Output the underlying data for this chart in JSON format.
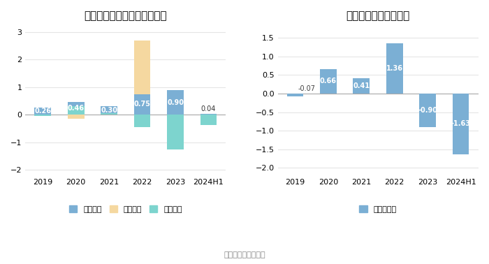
{
  "left_title": "康普化学现金流净额（亿元）",
  "right_title": "自由现金流量（亿元）",
  "categories": [
    "2019",
    "2020",
    "2021",
    "2022",
    "2023",
    "2024H1"
  ],
  "operating": [
    0.26,
    0.46,
    0.3,
    0.75,
    0.9,
    0.04
  ],
  "financing": [
    0.0,
    -0.15,
    0.0,
    1.95,
    0.0,
    -0.2
  ],
  "investing": [
    -0.05,
    0.3,
    0.05,
    -0.45,
    -1.25,
    -0.38
  ],
  "free_cash": [
    -0.07,
    0.66,
    0.41,
    1.36,
    -0.9,
    -1.63
  ],
  "color_operating": "#7BAFD4",
  "color_financing": "#F5D8A0",
  "color_investing": "#7DD4CE",
  "color_free": "#7BAFD4",
  "left_ylim": [
    -2.2,
    3.2
  ],
  "left_yticks": [
    -2,
    -1,
    0,
    1,
    2,
    3
  ],
  "right_ylim": [
    -2.2,
    1.8
  ],
  "right_yticks": [
    -2.0,
    -1.5,
    -1.0,
    -0.5,
    0.0,
    0.5,
    1.0,
    1.5
  ],
  "legend_operating": "经营活动",
  "legend_financing": "筹资活动",
  "legend_investing": "投资活动",
  "legend_free": "自由现金流",
  "source_text": "数据来源：恒生聚源",
  "bg_color": "#FFFFFF",
  "label_fontsize": 7.0,
  "title_fontsize": 11
}
